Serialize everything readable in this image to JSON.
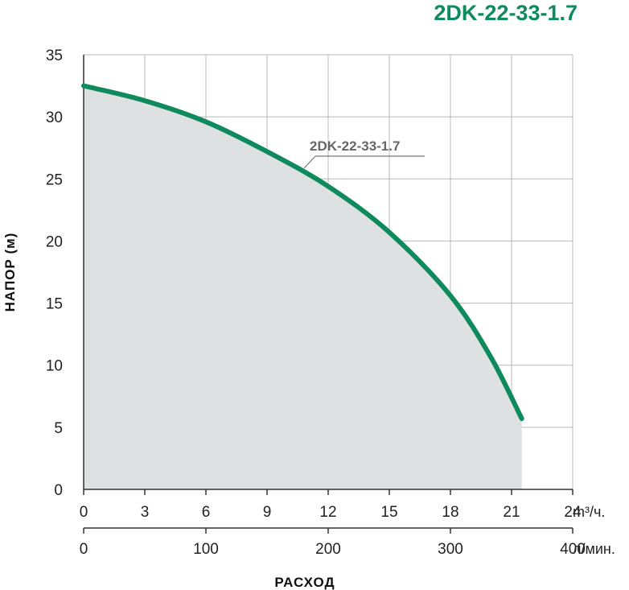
{
  "chart_data": {
    "type": "area",
    "title": "2DK-22-33-1.7",
    "ylabel": "НАПОР (м)",
    "xlabel": "РАСХОД",
    "ylim": [
      0,
      35
    ],
    "xlim": [
      0,
      24
    ],
    "y_ticks": [
      0,
      5,
      10,
      15,
      20,
      25,
      30,
      35
    ],
    "x_ticks": [
      0,
      3,
      6,
      9,
      12,
      15,
      18,
      21,
      24
    ],
    "x_unit": "m³/ч.",
    "x2_ticks": [
      0,
      100,
      200,
      300,
      400
    ],
    "x2_unit": "л/мин.",
    "grid": true,
    "series": [
      {
        "name": "2DK-22-33-1.7",
        "x": [
          0,
          3,
          6,
          9,
          12,
          15,
          18,
          20,
          21.5
        ],
        "y": [
          32.5,
          31.3,
          29.6,
          27.2,
          24.4,
          20.7,
          15.6,
          10.6,
          5.7
        ]
      }
    ],
    "colors": {
      "curve": "#0e8a5c",
      "fill": "#dde1e2",
      "title": "#0e8a5c"
    }
  }
}
